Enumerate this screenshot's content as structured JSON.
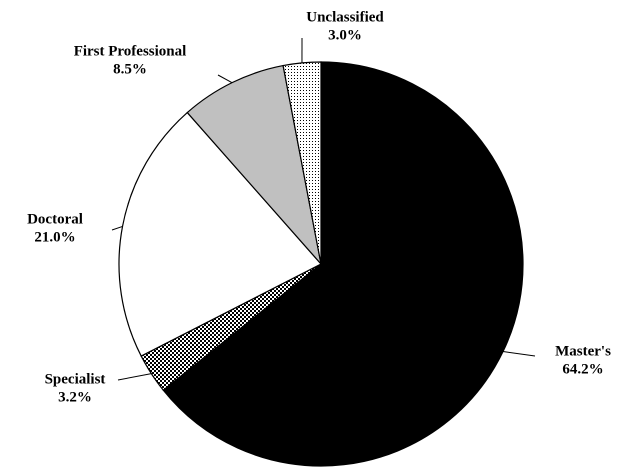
{
  "chart_data": {
    "type": "pie",
    "categories": [
      "Master's",
      "Specialist",
      "Doctoral",
      "First Professional",
      "Unclassified"
    ],
    "values": [
      64.2,
      3.2,
      21.0,
      8.5,
      3.0
    ],
    "value_labels": [
      "64.2%",
      "3.2%",
      "21.0%",
      "8.5%",
      "3.0%"
    ],
    "colors": [
      "#000000",
      "url(#checker)",
      "#ffffff",
      "#c0c0c0",
      "url(#dots)"
    ]
  }
}
